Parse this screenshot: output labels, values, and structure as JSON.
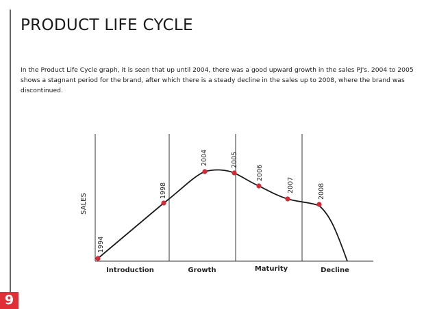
{
  "title": "PRODUCT LIFE CYCLE",
  "description": "In the Product Life Cycle graph, it is seen that up until 2004, there was a good upward growth in the sales PJ's. 2004 to 2005 shows a stagnant period for the brand, after which there is a steady decline in the sales up to 2008, where the brand was discontinued.",
  "page_number": "9",
  "colors": {
    "accent": "#e12f37",
    "point": "#d42a36",
    "line": "#1a1a1a"
  },
  "diagram": {
    "y_axis_label": "SALES",
    "phases": [
      "Introduction",
      "Growth",
      "Maturity",
      "Decline"
    ],
    "points": [
      {
        "year": "1994",
        "phase": "Introduction",
        "sales": 0.02
      },
      {
        "year": "1998",
        "phase": "Introduction",
        "sales": 0.45
      },
      {
        "year": "2004",
        "phase": "Growth",
        "sales": 0.74
      },
      {
        "year": "2005",
        "phase": "Maturity",
        "sales": 0.73
      },
      {
        "year": "2006",
        "phase": "Maturity",
        "sales": 0.6
      },
      {
        "year": "2007",
        "phase": "Maturity",
        "sales": 0.5
      },
      {
        "year": "2008",
        "phase": "Decline",
        "sales": 0.45
      }
    ]
  }
}
